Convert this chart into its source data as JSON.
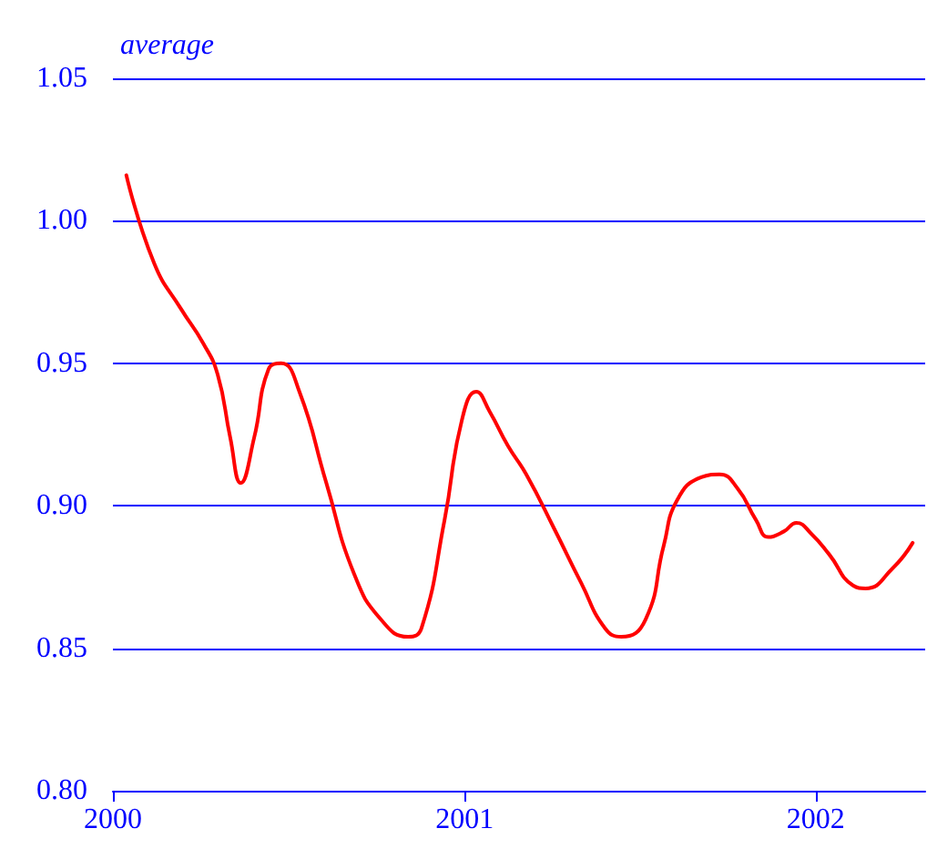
{
  "chart_data": {
    "type": "line",
    "ylabel": "average",
    "x": [
      "2000-01-15",
      "2000-02-13",
      "2000-03-12",
      "2000-04-04",
      "2000-04-19",
      "2000-05-02",
      "2000-05-13",
      "2000-05-27",
      "2000-06-11",
      "2000-06-24",
      "2000-07-13",
      "2000-08-10",
      "2000-09-08",
      "2000-10-06",
      "2000-11-03",
      "2000-11-17",
      "2000-12-11",
      "2000-12-29",
      "2001-01-13",
      "2001-01-27",
      "2001-02-15",
      "2001-03-06",
      "2001-04-04",
      "2001-05-02",
      "2001-05-27",
      "2001-06-13",
      "2001-07-08",
      "2001-07-27",
      "2001-08-10",
      "2001-09-04",
      "2001-09-23",
      "2001-10-12",
      "2001-10-31",
      "2001-11-13",
      "2001-11-29",
      "2001-12-12",
      "2001-12-28",
      "2002-01-15",
      "2002-02-09",
      "2002-02-22",
      "2002-03-22",
      "2002-04-12"
    ],
    "series": [
      {
        "color": "#ff0000",
        "values": [
          1.016,
          0.985,
          0.969,
          0.957,
          0.946,
          0.924,
          0.908,
          0.924,
          0.948,
          0.95,
          0.94,
          0.908,
          0.876,
          0.86,
          0.854,
          0.857,
          0.895,
          0.93,
          0.94,
          0.933,
          0.921,
          0.911,
          0.892,
          0.873,
          0.857,
          0.854,
          0.86,
          0.886,
          0.902,
          0.91,
          0.911,
          0.906,
          0.895,
          0.889,
          0.891,
          0.894,
          0.89,
          0.883,
          0.872,
          0.871,
          0.878,
          0.887
        ]
      }
    ],
    "xlim": [
      "2000-01-01",
      "2002-04-25"
    ],
    "xticks": [
      {
        "value": "2000-01-01",
        "label": "2000"
      },
      {
        "value": "2001-01-01",
        "label": "2001"
      },
      {
        "value": "2002-01-01",
        "label": "2002"
      }
    ],
    "ylim": [
      0.8,
      1.05
    ],
    "yticks": [
      {
        "value": 0.8,
        "label": "0.80"
      },
      {
        "value": 0.85,
        "label": "0.85"
      },
      {
        "value": 0.9,
        "label": "0.90"
      },
      {
        "value": 0.95,
        "label": "0.95"
      },
      {
        "value": 1.0,
        "label": "1.00"
      },
      {
        "value": 1.05,
        "label": "1.05"
      }
    ],
    "grid": "y",
    "marker": "none",
    "line_style": "solid"
  }
}
